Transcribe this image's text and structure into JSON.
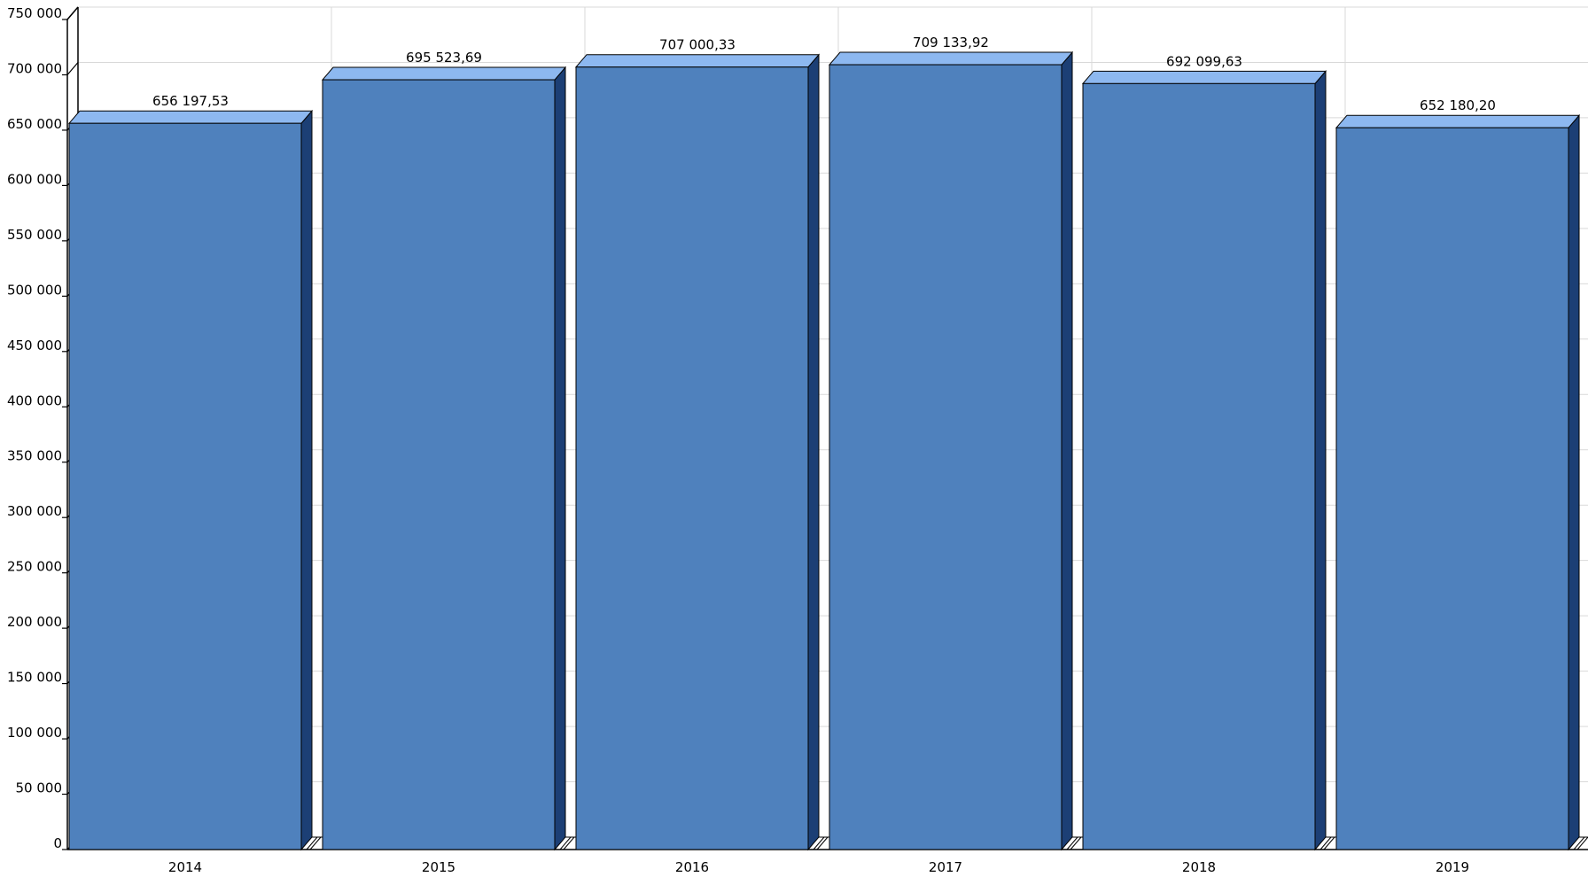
{
  "chart_data": {
    "type": "bar",
    "title": "",
    "xlabel": "",
    "ylabel": "",
    "categories": [
      "2014",
      "2015",
      "2016",
      "2017",
      "2018",
      "2019"
    ],
    "values": [
      656197.53,
      695523.69,
      707000.33,
      709133.92,
      692099.63,
      652180.2
    ],
    "data_labels": [
      "656 197,53",
      "695 523,69",
      "707 000,33",
      "709 133,92",
      "692 099,63",
      "652 180,20"
    ],
    "ylim": [
      0,
      750000
    ],
    "y_ticks": [
      {
        "value": 0,
        "label": "0"
      },
      {
        "value": 50000,
        "label": "50 000"
      },
      {
        "value": 100000,
        "label": "100 000"
      },
      {
        "value": 150000,
        "label": "150 000"
      },
      {
        "value": 200000,
        "label": "200 000"
      },
      {
        "value": 250000,
        "label": "250 000"
      },
      {
        "value": 300000,
        "label": "300 000"
      },
      {
        "value": 350000,
        "label": "350 000"
      },
      {
        "value": 400000,
        "label": "400 000"
      },
      {
        "value": 450000,
        "label": "450 000"
      },
      {
        "value": 500000,
        "label": "500 000"
      },
      {
        "value": 550000,
        "label": "550 000"
      },
      {
        "value": 600000,
        "label": "600 000"
      },
      {
        "value": 650000,
        "label": "650 000"
      },
      {
        "value": 700000,
        "label": "700 000"
      },
      {
        "value": 750000,
        "label": "750 000"
      }
    ],
    "grid": true,
    "legend": "none",
    "colors": {
      "bar_front": "#4f81bd",
      "bar_top": "#8db8f0",
      "bar_side": "#1c3f75",
      "grid": "#d9d9d9",
      "axis": "#000000"
    }
  }
}
